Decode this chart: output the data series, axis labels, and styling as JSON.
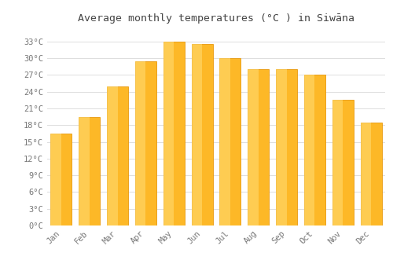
{
  "title": "Average monthly temperatures (°C ) in Siwāna",
  "months": [
    "Jan",
    "Feb",
    "Mar",
    "Apr",
    "May",
    "Jun",
    "Jul",
    "Aug",
    "Sep",
    "Oct",
    "Nov",
    "Dec"
  ],
  "temperatures": [
    16.5,
    19.5,
    25.0,
    29.5,
    33.0,
    32.5,
    30.0,
    28.0,
    28.0,
    27.0,
    22.5,
    18.5
  ],
  "bar_color_main": "#FDB827",
  "bar_color_light": "#FFDD77",
  "bar_color_edge": "#E8980A",
  "background_color": "#ffffff",
  "grid_color": "#dddddd",
  "tick_label_color": "#777777",
  "title_color": "#444444",
  "yticks": [
    0,
    3,
    6,
    9,
    12,
    15,
    18,
    21,
    24,
    27,
    30,
    33
  ],
  "ylim": [
    0,
    35.5
  ],
  "title_fontsize": 9.5,
  "tick_fontsize": 7.5,
  "font_family": "monospace",
  "bar_width": 0.75,
  "fig_width": 5.0,
  "fig_height": 3.5,
  "dpi": 100
}
